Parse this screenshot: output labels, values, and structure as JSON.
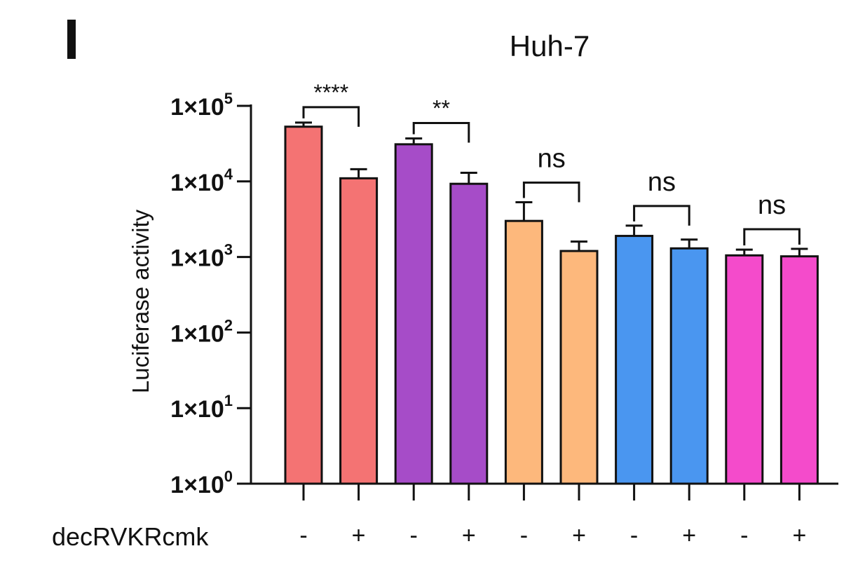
{
  "chart_data": {
    "type": "bar",
    "panel_label": "I",
    "title": "Huh-7",
    "ylabel": "Luciferase activity",
    "yscale": "log",
    "ylim": [
      1,
      100000
    ],
    "yticks": [
      {
        "value": 1,
        "base": "1×10",
        "exp": "0"
      },
      {
        "value": 10,
        "base": "1×10",
        "exp": "1"
      },
      {
        "value": 100,
        "base": "1×10",
        "exp": "2"
      },
      {
        "value": 1000,
        "base": "1×10",
        "exp": "3"
      },
      {
        "value": 10000,
        "base": "1×10",
        "exp": "4"
      },
      {
        "value": 100000,
        "base": "1×10",
        "exp": "5"
      }
    ],
    "treatment_label": "decRVKRcmk",
    "bars": [
      {
        "label": "-",
        "value": 53000,
        "err": 60000,
        "color": "#F47373"
      },
      {
        "label": "+",
        "value": 11000,
        "err": 14500,
        "color": "#F47373"
      },
      {
        "label": "-",
        "value": 31000,
        "err": 37000,
        "color": "#A64CC8"
      },
      {
        "label": "+",
        "value": 9300,
        "err": 13000,
        "color": "#A64CC8"
      },
      {
        "label": "-",
        "value": 3000,
        "err": 5300,
        "color": "#FDB87C"
      },
      {
        "label": "+",
        "value": 1200,
        "err": 1600,
        "color": "#FDB87C"
      },
      {
        "label": "-",
        "value": 1900,
        "err": 2600,
        "color": "#4A96F0"
      },
      {
        "label": "+",
        "value": 1300,
        "err": 1700,
        "color": "#4A96F0"
      },
      {
        "label": "-",
        "value": 1050,
        "err": 1250,
        "color": "#F44BCB"
      },
      {
        "label": "+",
        "value": 1020,
        "err": 1280,
        "color": "#F44BCB"
      }
    ],
    "comparisons": [
      {
        "from": 0,
        "to": 1,
        "text": "****"
      },
      {
        "from": 2,
        "to": 3,
        "text": "**"
      },
      {
        "from": 4,
        "to": 5,
        "text": "ns"
      },
      {
        "from": 6,
        "to": 7,
        "text": "ns"
      },
      {
        "from": 8,
        "to": 9,
        "text": "ns"
      }
    ],
    "grid": false
  }
}
